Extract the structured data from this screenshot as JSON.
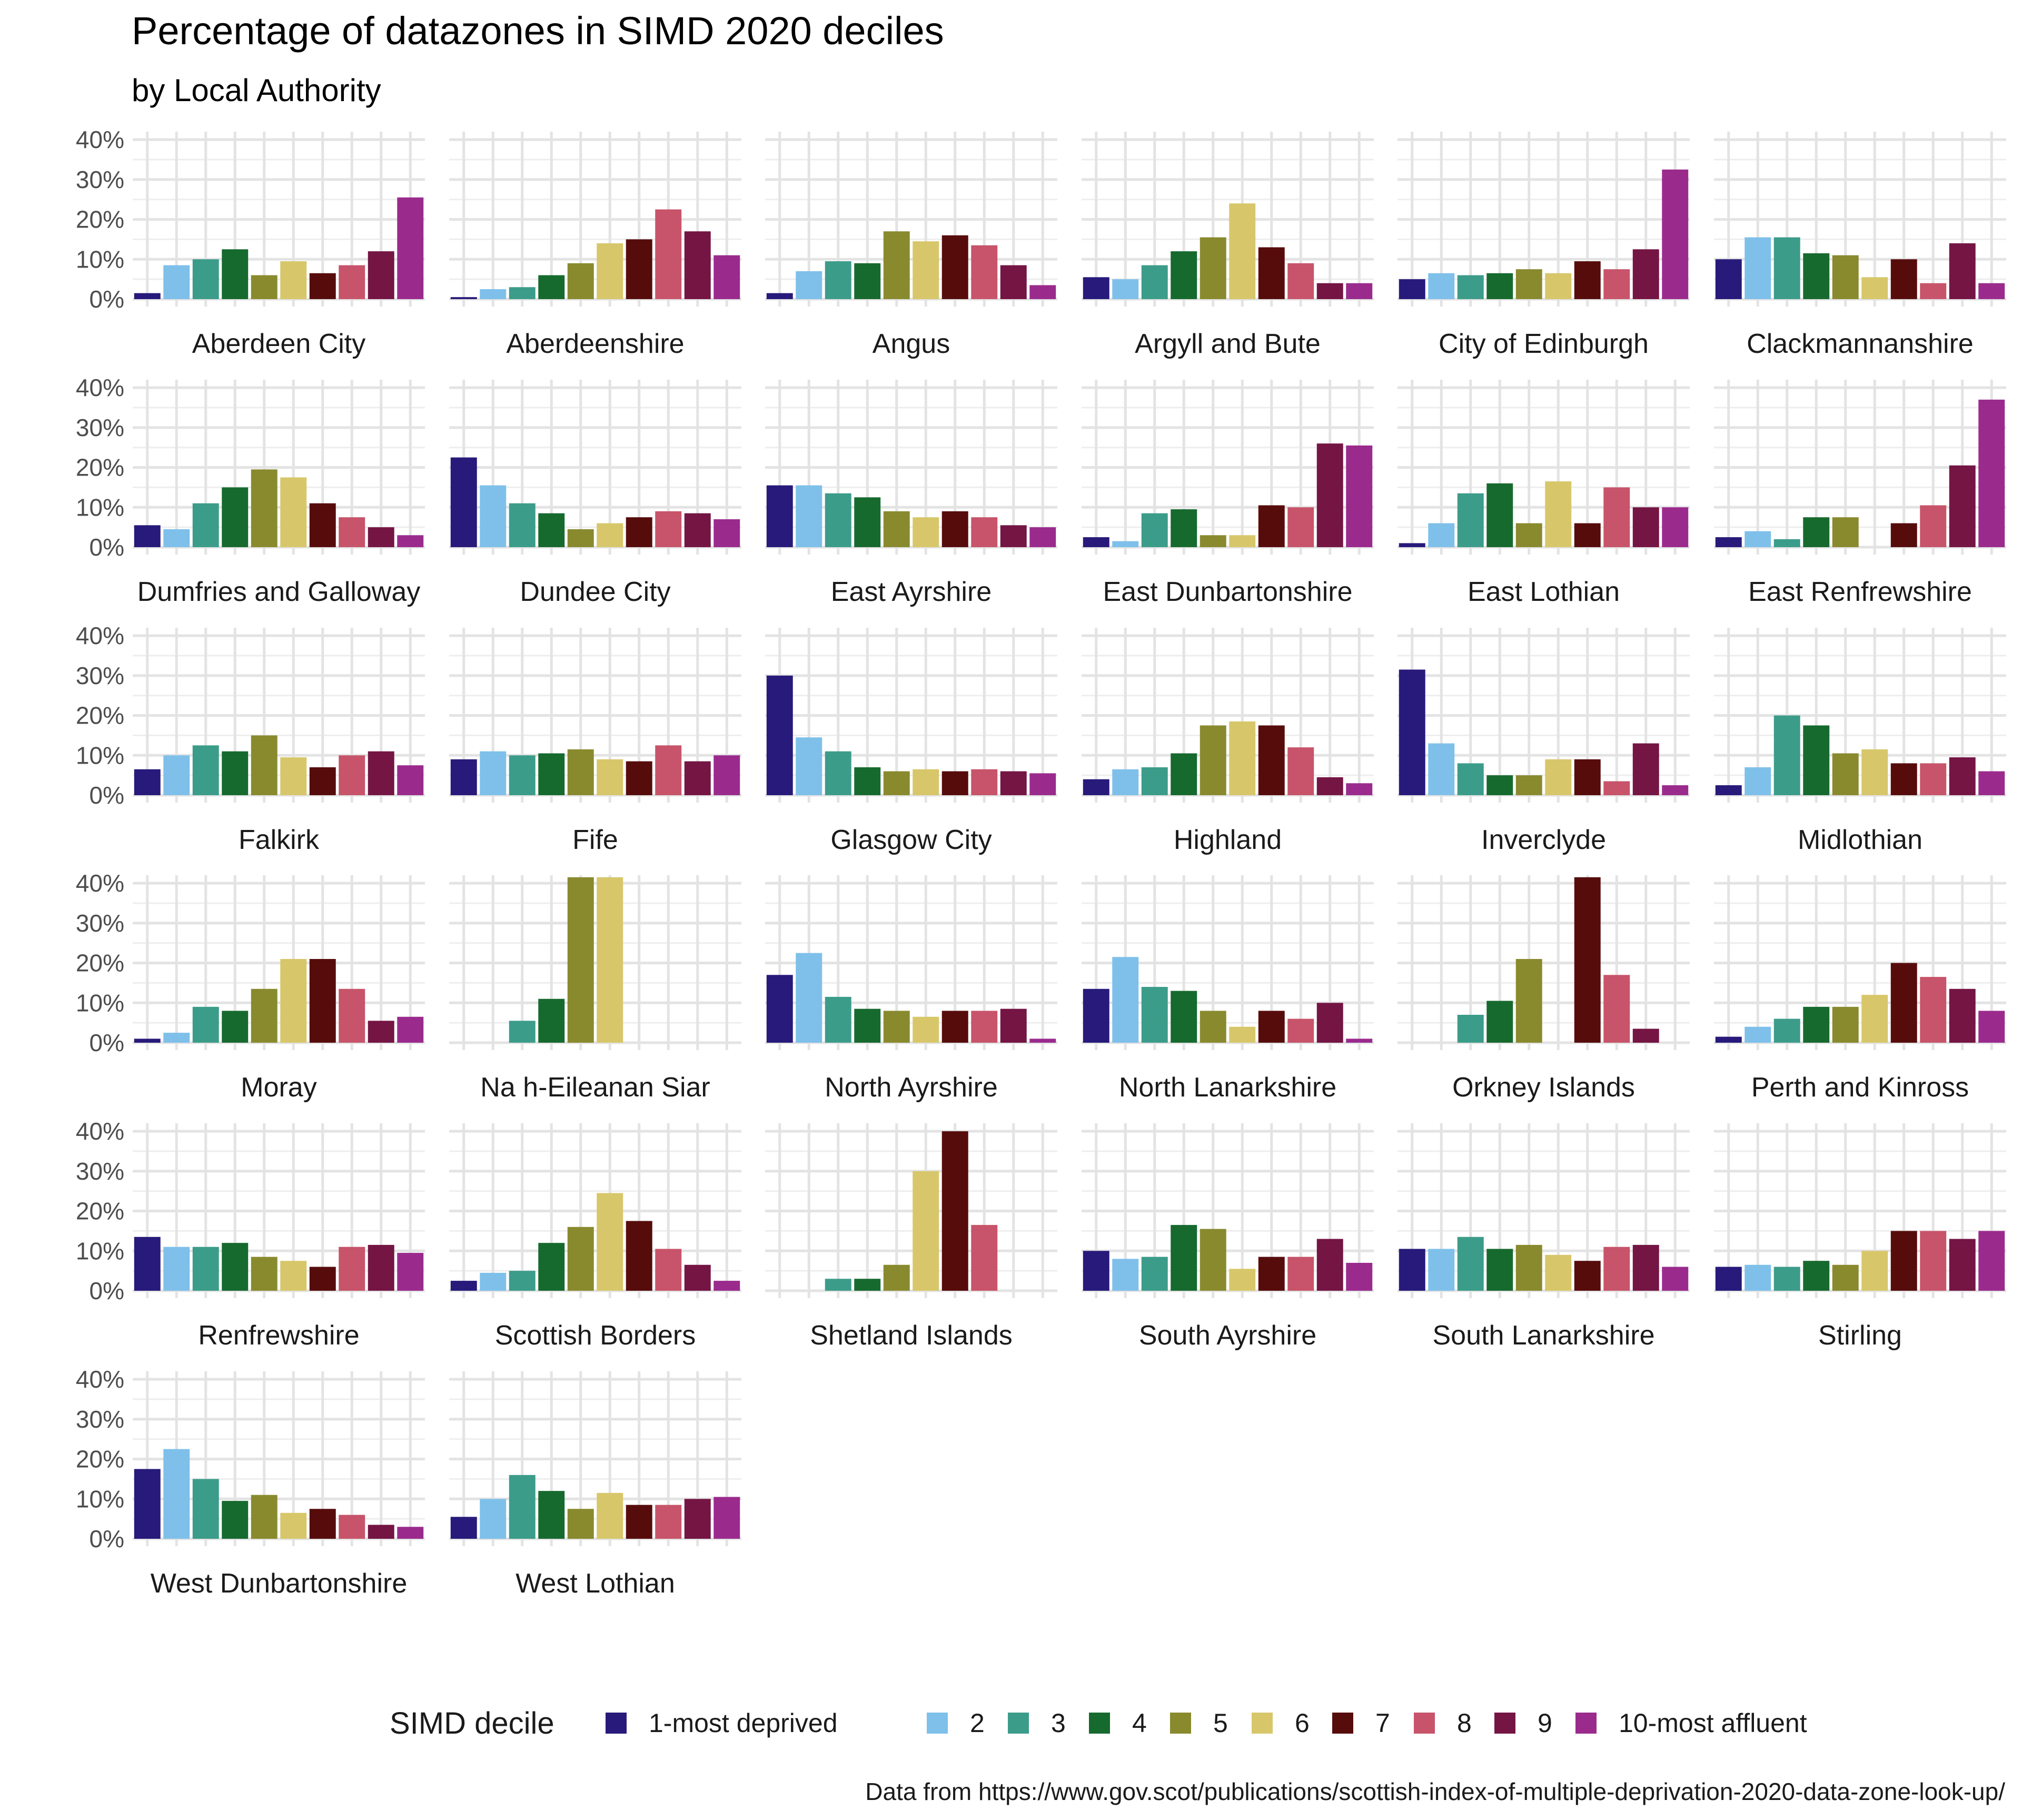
{
  "chart_data": {
    "type": "bar",
    "title": "Percentage of datazones in SIMD 2020 deciles",
    "subtitle": "by Local Authority",
    "caption": "Data from https://www.gov.scot/publications/scottish-index-of-multiple-deprivation-2020-data-zone-look-up/",
    "legend_title": "SIMD decile",
    "legend_position": "bottom",
    "grid": true,
    "ylim": [
      0,
      42
    ],
    "y_ticks": [
      0,
      10,
      20,
      30,
      40
    ],
    "y_tick_labels": [
      "0%",
      "10%",
      "20%",
      "30%",
      "40%"
    ],
    "categories": [
      "1-most deprived",
      "2",
      "3",
      "4",
      "5",
      "6",
      "7",
      "8",
      "9",
      "10-most affluent"
    ],
    "colors": [
      "#271a7a",
      "#7ec0ea",
      "#3c9c8a",
      "#176a2e",
      "#898a2e",
      "#d7c76a",
      "#570c0c",
      "#c7546a",
      "#741544",
      "#9a2b8d"
    ],
    "panels": [
      {
        "name": "Aberdeen City",
        "values": [
          1.5,
          8.5,
          10,
          12.5,
          6,
          9.5,
          6.5,
          8.5,
          12,
          25.5
        ]
      },
      {
        "name": "Aberdeenshire",
        "values": [
          0.5,
          2.5,
          3,
          6,
          9,
          14,
          15,
          22.5,
          17,
          11
        ]
      },
      {
        "name": "Angus",
        "values": [
          1.5,
          7,
          9.5,
          9,
          17,
          14.5,
          16,
          13.5,
          8.5,
          3.5
        ]
      },
      {
        "name": "Argyll and Bute",
        "values": [
          5.5,
          5,
          8.5,
          12,
          15.5,
          24,
          13,
          9,
          4,
          4
        ]
      },
      {
        "name": "City of Edinburgh",
        "values": [
          5,
          6.5,
          6,
          6.5,
          7.5,
          6.5,
          9.5,
          7.5,
          12.5,
          32.5
        ]
      },
      {
        "name": "Clackmannanshire",
        "values": [
          10,
          15.5,
          15.5,
          11.5,
          11,
          5.5,
          10,
          4,
          14,
          4
        ]
      },
      {
        "name": "Dumfries and Galloway",
        "values": [
          5.5,
          4.5,
          11,
          15,
          19.5,
          17.5,
          11,
          7.5,
          5,
          3
        ]
      },
      {
        "name": "Dundee City",
        "values": [
          22.5,
          15.5,
          11,
          8.5,
          4.5,
          6,
          7.5,
          9,
          8.5,
          7
        ]
      },
      {
        "name": "East Ayrshire",
        "values": [
          15.5,
          15.5,
          13.5,
          12.5,
          9,
          7.5,
          9,
          7.5,
          5.5,
          5
        ]
      },
      {
        "name": "East Dunbartonshire",
        "values": [
          2.5,
          1.5,
          8.5,
          9.5,
          3,
          3,
          10.5,
          10,
          26,
          25.5
        ]
      },
      {
        "name": "East Lothian",
        "values": [
          1,
          6,
          13.5,
          16,
          6,
          16.5,
          6,
          15,
          10,
          10
        ]
      },
      {
        "name": "East Renfrewshire",
        "values": [
          2.5,
          4,
          2,
          7.5,
          7.5,
          0,
          6,
          10.5,
          20.5,
          37
        ]
      },
      {
        "name": "Falkirk",
        "values": [
          6.5,
          10,
          12.5,
          11,
          15,
          9.5,
          7,
          10,
          11,
          7.5
        ]
      },
      {
        "name": "Fife",
        "values": [
          9,
          11,
          10,
          10.5,
          11.5,
          9,
          8.5,
          12.5,
          8.5,
          10
        ]
      },
      {
        "name": "Glasgow City",
        "values": [
          30,
          14.5,
          11,
          7,
          6,
          6.5,
          6,
          6.5,
          6,
          5.5
        ]
      },
      {
        "name": "Highland",
        "values": [
          4,
          6.5,
          7,
          10.5,
          17.5,
          18.5,
          17.5,
          12,
          4.5,
          3
        ]
      },
      {
        "name": "Inverclyde",
        "values": [
          31.5,
          13,
          8,
          5,
          5,
          9,
          9,
          3.5,
          13,
          2.5
        ]
      },
      {
        "name": "Midlothian",
        "values": [
          2.5,
          7,
          20,
          17.5,
          10.5,
          11.5,
          8,
          8,
          9.5,
          6
        ]
      },
      {
        "name": "Moray",
        "values": [
          1,
          2.5,
          9,
          8,
          13.5,
          21,
          21,
          13.5,
          5.5,
          6.5
        ]
      },
      {
        "name": "Na h-Eileanan Siar",
        "values": [
          0,
          0,
          5.5,
          11,
          41.5,
          41.5,
          0,
          0,
          0,
          0
        ]
      },
      {
        "name": "North Ayrshire",
        "values": [
          17,
          22.5,
          11.5,
          8.5,
          8,
          6.5,
          8,
          8,
          8.5,
          1
        ]
      },
      {
        "name": "North Lanarkshire",
        "values": [
          13.5,
          21.5,
          14,
          13,
          8,
          4,
          8,
          6,
          10,
          1
        ]
      },
      {
        "name": "Orkney Islands",
        "values": [
          0,
          0,
          7,
          10.5,
          21,
          0,
          41.5,
          17,
          3.5,
          0
        ]
      },
      {
        "name": "Perth and Kinross",
        "values": [
          1.5,
          4,
          6,
          9,
          9,
          12,
          20,
          16.5,
          13.5,
          8
        ]
      },
      {
        "name": "Renfrewshire",
        "values": [
          13.5,
          11,
          11,
          12,
          8.5,
          7.5,
          6,
          11,
          11.5,
          9.5
        ]
      },
      {
        "name": "Scottish Borders",
        "values": [
          2.5,
          4.5,
          5,
          12,
          16,
          24.5,
          17.5,
          10.5,
          6.5,
          2.5
        ]
      },
      {
        "name": "Shetland Islands",
        "values": [
          0,
          0,
          3,
          3,
          6.5,
          30,
          40,
          16.5,
          0,
          0
        ]
      },
      {
        "name": "South Ayrshire",
        "values": [
          10,
          8,
          8.5,
          16.5,
          15.5,
          5.5,
          8.5,
          8.5,
          13,
          7
        ]
      },
      {
        "name": "South Lanarkshire",
        "values": [
          10.5,
          10.5,
          13.5,
          10.5,
          11.5,
          9,
          7.5,
          11,
          11.5,
          6
        ]
      },
      {
        "name": "Stirling",
        "values": [
          6,
          6.5,
          6,
          7.5,
          6.5,
          10,
          15,
          15,
          13,
          15
        ]
      },
      {
        "name": "West Dunbartonshire",
        "values": [
          17.5,
          22.5,
          15,
          9.5,
          11,
          6.5,
          7.5,
          6,
          3.5,
          3
        ]
      },
      {
        "name": "West Lothian",
        "values": [
          5.5,
          10,
          16,
          12,
          7.5,
          11.5,
          8.5,
          8.5,
          10,
          10.5
        ]
      }
    ]
  }
}
